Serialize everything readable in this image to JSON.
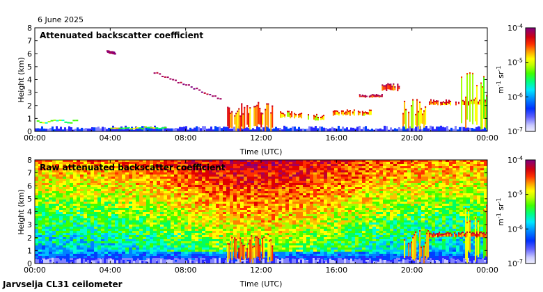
{
  "header": {
    "date": "6 June 2025"
  },
  "footer": {
    "site": "Jarvselja CL31 ceilometer"
  },
  "colors": {
    "palette": [
      "#f0f0ff",
      "#c8c8ff",
      "#8080ff",
      "#2828ff",
      "#0040ff",
      "#0080ff",
      "#00c0ff",
      "#00ffd0",
      "#00ff60",
      "#40ff00",
      "#a0ff00",
      "#ffff00",
      "#ffc000",
      "#ff8000",
      "#ff3000",
      "#e00000",
      "#c00030",
      "#a00060",
      "#800080"
    ]
  },
  "chart_data": [
    {
      "type": "heatmap",
      "title": "Attenuated backscatter coefficient",
      "xlabel": "Time (UTC)",
      "ylabel": "Height (km)",
      "xticks": [
        "00:00",
        "04:00",
        "08:00",
        "12:00",
        "16:00",
        "20:00",
        "00:00"
      ],
      "yticks": [
        "0",
        "1",
        "2",
        "3",
        "4",
        "5",
        "6",
        "7",
        "8"
      ],
      "xlim_hours": [
        0,
        24
      ],
      "ylim_km": [
        0,
        8
      ],
      "colorbar": {
        "unit_m": "m",
        "unit_exp1": "-1",
        "unit_sr": "sr",
        "unit_exp2": "-1",
        "ticks": [
          {
            "b": "10",
            "e": "-4"
          },
          {
            "b": "10",
            "e": "-5"
          },
          {
            "b": "10",
            "e": "-6"
          },
          {
            "b": "10",
            "e": "-7"
          }
        ],
        "range_log10": [
          -7,
          -4
        ]
      },
      "features": [
        {
          "kind": "boundary_layer",
          "t": [
            0,
            24
          ],
          "h": [
            0.0,
            0.35
          ],
          "level": 3
        },
        {
          "kind": "layer",
          "t": [
            0.1,
            2.3
          ],
          "h": [
            0.7,
            0.95
          ],
          "level": 9
        },
        {
          "kind": "layer",
          "t": [
            4.0,
            7.0
          ],
          "h": [
            0.25,
            0.4
          ],
          "level": 10
        },
        {
          "kind": "cloud_streak",
          "t": [
            3.8,
            4.2
          ],
          "h": [
            6.1,
            6.2
          ],
          "level": 17
        },
        {
          "kind": "cloud_streak",
          "t": [
            6.3,
            9.8
          ],
          "h": [
            2.6,
            4.6
          ],
          "level": 17
        },
        {
          "kind": "cloud",
          "t": [
            10.2,
            12.6
          ],
          "h": [
            0.0,
            2.3
          ],
          "level": 14
        },
        {
          "kind": "cloud",
          "t": [
            13.0,
            14.3
          ],
          "h": [
            1.0,
            1.6
          ],
          "level": 13
        },
        {
          "kind": "cloud",
          "t": [
            14.4,
            15.4
          ],
          "h": [
            0.8,
            1.4
          ],
          "level": 13
        },
        {
          "kind": "cloud",
          "t": [
            15.8,
            17.8
          ],
          "h": [
            1.2,
            1.7
          ],
          "level": 13
        },
        {
          "kind": "cloud",
          "t": [
            17.2,
            18.4
          ],
          "h": [
            2.6,
            2.9
          ],
          "level": 15
        },
        {
          "kind": "cloud",
          "t": [
            18.4,
            19.4
          ],
          "h": [
            3.1,
            3.8
          ],
          "level": 15
        },
        {
          "kind": "cloud",
          "t": [
            19.5,
            20.9
          ],
          "h": [
            0.0,
            2.6
          ],
          "level": 13
        },
        {
          "kind": "cloud",
          "t": [
            20.9,
            24.0
          ],
          "h": [
            2.0,
            2.5
          ],
          "level": 14
        },
        {
          "kind": "cloud",
          "t": [
            22.6,
            24.0
          ],
          "h": [
            0.0,
            4.6
          ],
          "level": 12
        }
      ]
    },
    {
      "type": "heatmap",
      "title": "Raw attenuated backscatter coefficient",
      "xlabel": "Time (UTC)",
      "ylabel": "Height (km)",
      "xticks": [
        "00:00",
        "04:00",
        "08:00",
        "12:00",
        "16:00",
        "20:00",
        "00:00"
      ],
      "yticks": [
        "0",
        "1",
        "2",
        "3",
        "4",
        "5",
        "6",
        "7",
        "8"
      ],
      "xlim_hours": [
        0,
        24
      ],
      "ylim_km": [
        0,
        8
      ],
      "colorbar": {
        "unit_m": "m",
        "unit_exp1": "-1",
        "unit_sr": "sr",
        "unit_exp2": "-1",
        "ticks": [
          {
            "b": "10",
            "e": "-4"
          },
          {
            "b": "10",
            "e": "-5"
          },
          {
            "b": "10",
            "e": "-6"
          },
          {
            "b": "10",
            "e": "-7"
          }
        ],
        "range_log10": [
          -7,
          -4
        ]
      },
      "noise_profile": "green-blue near surface rising to red/orange aloft, strongest 09:00-15:00",
      "features": [
        {
          "kind": "boundary_layer",
          "t": [
            0,
            24
          ],
          "h": [
            0.0,
            0.35
          ],
          "level": 2
        },
        {
          "kind": "cloud",
          "t": [
            10.2,
            12.6
          ],
          "h": [
            0.0,
            2.3
          ],
          "level": 14
        },
        {
          "kind": "cloud",
          "t": [
            19.5,
            20.9
          ],
          "h": [
            0.0,
            2.6
          ],
          "level": 13
        },
        {
          "kind": "cloud",
          "t": [
            22.6,
            24.0
          ],
          "h": [
            0.0,
            4.6
          ],
          "level": 12
        },
        {
          "kind": "cloud",
          "t": [
            20.9,
            24.0
          ],
          "h": [
            2.0,
            2.5
          ],
          "level": 14
        }
      ]
    }
  ]
}
